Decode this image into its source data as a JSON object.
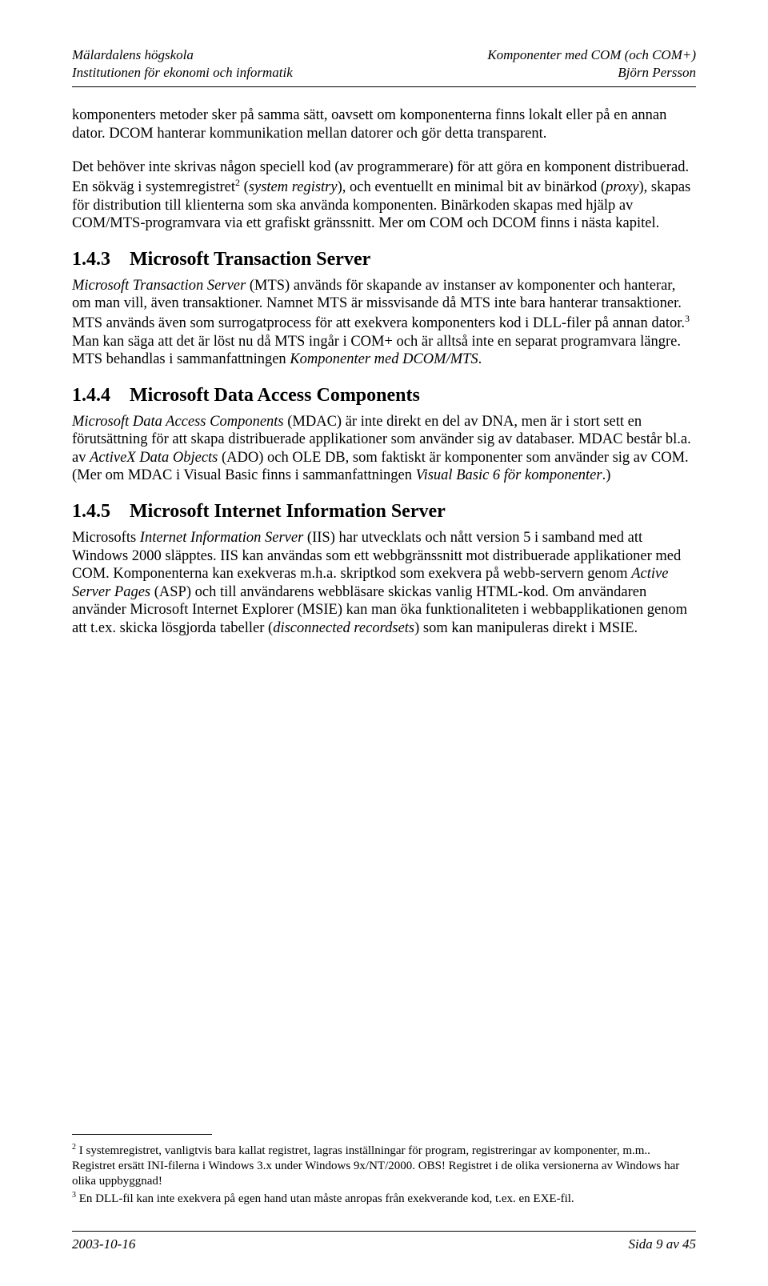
{
  "header": {
    "left_line1": "Mälardalens högskola",
    "left_line2": "Institutionen för ekonomi och informatik",
    "right_line1": "Komponenter med COM (och COM+)",
    "right_line2": "Björn Persson"
  },
  "p1_a": "komponenters metoder sker på samma sätt, oavsett om komponenterna finns lokalt eller på en annan dator. DCOM hanterar kommunikation mellan datorer och gör detta transparent.",
  "p2_a": "Det behöver inte skrivas någon speciell kod (av programmerare) för att göra en komponent distribuerad. En sökväg i systemregistret",
  "p2_b": " (",
  "p2_c": "system registry",
  "p2_d": "), och eventuellt en minimal bit av binärkod (",
  "p2_e": "proxy",
  "p2_f": "), skapas för distribution till klienterna som ska använda komponenten. Binärkoden skapas med hjälp av COM/MTS-programvara via ett grafiskt gränssnitt. Mer om COM och DCOM finns i nästa kapitel.",
  "s143_num": "1.4.3",
  "s143_title": "Microsoft Transaction Server",
  "p3_a": "Microsoft Transaction Server",
  "p3_b": " (MTS) används för skapande av instanser av komponenter och hanterar, om man vill, även transaktioner. Namnet MTS är missvisande då MTS inte bara hanterar transaktioner. MTS används även som surrogatprocess för att exekvera komponenters kod i DLL-filer på annan dator.",
  "p3_c": " Man kan säga att det är löst nu då MTS ingår i COM+ och är alltså inte en separat programvara längre. MTS behandlas i sammanfattningen ",
  "p3_d": "Komponenter med DCOM/MTS",
  "p3_e": ".",
  "s144_num": "1.4.4",
  "s144_title": "Microsoft Data Access Components",
  "p4_a": "Microsoft Data Access Components",
  "p4_b": " (MDAC) är inte direkt en del av DNA, men är i stort sett en förutsättning för att skapa distribuerade applikationer som använder sig av databaser. MDAC består bl.a. av ",
  "p4_c": "ActiveX Data Objects",
  "p4_d": " (ADO) och OLE DB, som faktiskt är komponenter som använder sig av COM. (Mer om MDAC i Visual Basic finns i sammanfattningen ",
  "p4_e": "Visual Basic 6 för komponenter",
  "p4_f": ".)",
  "s145_num": "1.4.5",
  "s145_title": "Microsoft Internet Information Server",
  "p5_a": "Microsofts ",
  "p5_b": "Internet Information Server",
  "p5_c": " (IIS) har utvecklats och nått version 5 i samband med att Windows 2000 släpptes. IIS kan användas som ett webbgränssnitt mot distribuerade applikationer med COM. Komponenterna kan exekveras m.h.a. skriptkod som exekvera på webb-servern genom ",
  "p5_d": "Active Server Pages",
  "p5_e": " (ASP) och till användarens webbläsare skickas vanlig HTML-kod. Om användaren använder Microsoft Internet Explorer (MSIE) kan man öka funktionaliteten i webbapplikationen genom att t.ex. skicka lösgjorda tabeller (",
  "p5_f": "disconnected recordsets",
  "p5_g": ") som kan manipuleras direkt i MSIE.",
  "fn2_a": " I systemregistret, vanligtvis bara kallat registret, lagras inställningar för program, registreringar av komponenter, m.m.. Registret ersätt INI-filerna i Windows 3.x under Windows 9x/NT/2000. OBS! Registret i de olika versionerna av Windows har olika uppbyggnad!",
  "fn3_a": " En DLL-fil kan inte exekvera på egen hand utan måste anropas från exekverande kod, t.ex. en EXE-fil.",
  "footer": {
    "left": "2003-10-16",
    "right": "Sida 9 av 45"
  },
  "sup2": "2",
  "sup3": "3"
}
